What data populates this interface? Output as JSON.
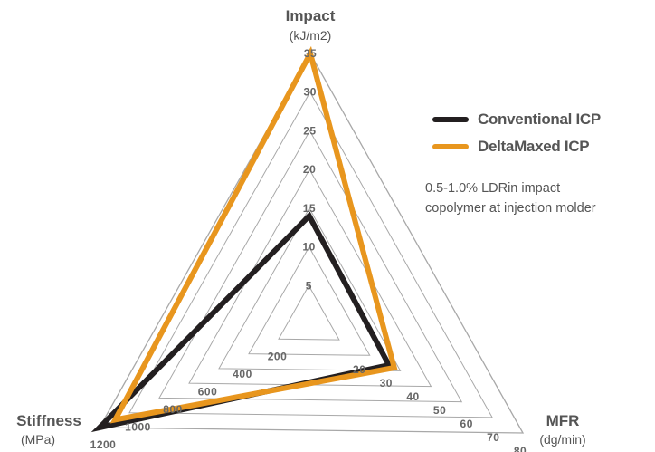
{
  "chart_data": {
    "type": "radar",
    "axes": [
      {
        "name": "Impact",
        "unit": "(kJ/m2)",
        "ticks": [
          5,
          10,
          15,
          20,
          25,
          30,
          35
        ],
        "max": 35
      },
      {
        "name": "MFR",
        "unit": "(dg/min)",
        "ticks": [
          20,
          30,
          40,
          50,
          60,
          70,
          80
        ],
        "max": 80
      },
      {
        "name": "Stiffness",
        "unit": "(MPa)",
        "ticks": [
          200,
          400,
          600,
          800,
          1000,
          1200
        ],
        "max": 1200
      }
    ],
    "series": [
      {
        "name": "Conventional ICP",
        "color": "#231f20",
        "values": [
          14,
          30,
          1200
        ]
      },
      {
        "name": "DeltaMaxed ICP",
        "color": "#e8961e",
        "values": [
          35,
          32,
          1110
        ]
      }
    ],
    "legend_position": "right",
    "annotation": [
      "0.5-1.0% LDRin impact",
      "copolymer at injection molder"
    ]
  }
}
